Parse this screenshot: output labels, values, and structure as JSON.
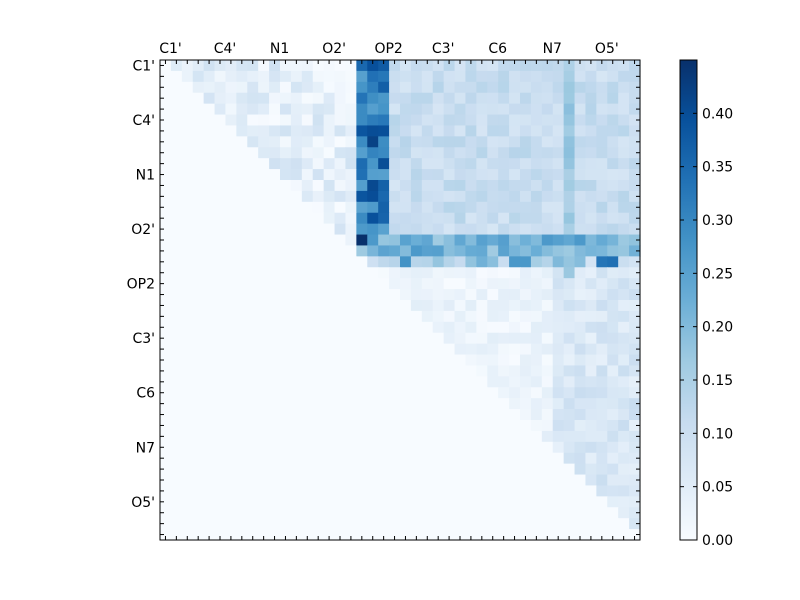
{
  "chart_data": {
    "type": "heatmap",
    "title": "",
    "xlabel": "",
    "ylabel": "",
    "n": 44,
    "x_tick_labels": [
      "C1'",
      "C4'",
      "N1",
      "O2'",
      "OP2",
      "C3'",
      "C6",
      "N7",
      "O5'"
    ],
    "y_tick_labels": [
      "C1'",
      "C4'",
      "N1",
      "O2'",
      "OP2",
      "C3'",
      "C6",
      "N7",
      "O5'"
    ],
    "label_positions": [
      0,
      5,
      10,
      15,
      20,
      25,
      30,
      35,
      40
    ],
    "x_ticks_position": "top",
    "colormap": "Blues",
    "color_low": "#f7fbff",
    "color_high": "#08306b",
    "vmin": 0.0,
    "vmax": 0.45,
    "colorbar_ticks": [
      0.0,
      0.05,
      0.1,
      0.15,
      0.2,
      0.25,
      0.3,
      0.35,
      0.4
    ],
    "colorbar_tick_labels": [
      "0.00",
      "0.05",
      "0.10",
      "0.15",
      "0.20",
      "0.25",
      "0.30",
      "0.35",
      "0.40"
    ],
    "upper_triangle_only": true,
    "strong_row_band": {
      "rows": [
        16,
        17
      ],
      "from_col": 18,
      "value": 0.22
    },
    "strong_col_band": {
      "cols": [
        18,
        19,
        20
      ],
      "to_row": 17,
      "value": 0.34
    },
    "peak_cells": [
      {
        "row": 16,
        "col": 18,
        "value": 0.45
      },
      {
        "row": 7,
        "col": 19,
        "value": 0.42
      },
      {
        "row": 12,
        "col": 19,
        "value": 0.4
      },
      {
        "row": 18,
        "col": 40,
        "value": 0.33
      },
      {
        "row": 18,
        "col": 41,
        "value": 0.34
      },
      {
        "row": 18,
        "col": 22,
        "value": 0.28
      },
      {
        "row": 18,
        "col": 32,
        "value": 0.27
      },
      {
        "row": 18,
        "col": 33,
        "value": 0.27
      }
    ],
    "upper_block": {
      "rows": [
        0,
        15
      ],
      "cols": [
        21,
        43
      ],
      "value": 0.1
    },
    "lower_region_value": 0.07,
    "diagonal_band_value": 0.09,
    "highlight_column": {
      "col": 37,
      "value": 0.18
    }
  }
}
